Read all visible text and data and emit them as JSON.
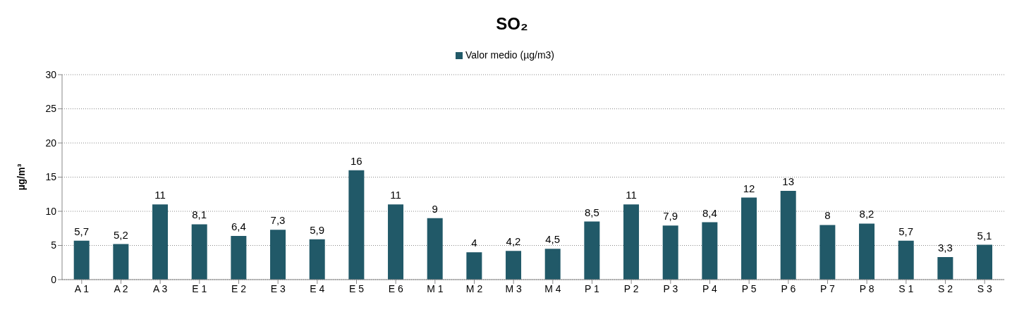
{
  "chart_data": {
    "type": "bar",
    "title": "SO₂",
    "ylabel": "µg/m³",
    "categories": [
      "A 1",
      "A 2",
      "A 3",
      "E 1",
      "E 2",
      "E 3",
      "E 4",
      "E 5",
      "E 6",
      "M 1",
      "M 2",
      "M 3",
      "M 4",
      "P 1",
      "P 2",
      "P 3",
      "P 4",
      "P 5",
      "P 6",
      "P 7",
      "P 8",
      "S 1",
      "S 2",
      "S 3"
    ],
    "series": [
      {
        "name": "Valor medio (µg/m3)",
        "color": "#215968",
        "values": [
          5.7,
          5.2,
          11,
          8.1,
          6.4,
          7.3,
          5.9,
          16,
          11,
          9,
          4,
          4.2,
          4.5,
          8.5,
          11,
          7.9,
          8.4,
          12,
          13,
          8,
          8.2,
          5.7,
          3.3,
          5.1
        ],
        "value_labels": [
          "5,7",
          "5,2",
          "11",
          "8,1",
          "6,4",
          "7,3",
          "5,9",
          "16",
          "11",
          "9",
          "4",
          "4,2",
          "4,5",
          "8,5",
          "11",
          "7,9",
          "8,4",
          "12",
          "13",
          "8",
          "8,2",
          "5,7",
          "3,3",
          "5,1"
        ]
      }
    ],
    "ylim": [
      0,
      30
    ],
    "yticks": [
      0,
      5,
      10,
      15,
      20,
      25,
      30
    ],
    "grid": "y",
    "legend": "top"
  }
}
